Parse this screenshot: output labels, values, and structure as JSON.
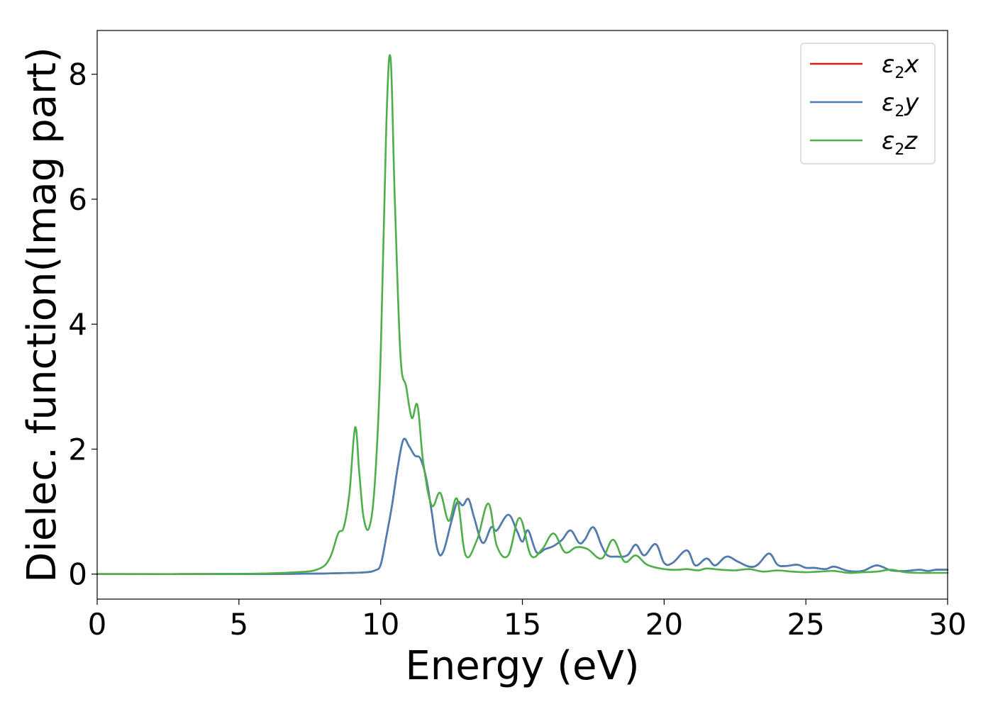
{
  "chart_data": {
    "type": "line",
    "title": "",
    "xlabel": "Energy (eV)",
    "ylabel": "Dielec. function(Imag part)",
    "xlim": [
      0,
      30
    ],
    "ylim": [
      -0.4,
      8.7
    ],
    "xticks": [
      0,
      5,
      10,
      15,
      20,
      25,
      30
    ],
    "yticks": [
      0,
      2,
      4,
      6,
      8
    ],
    "xtick_labels": [
      "0",
      "5",
      "10",
      "15",
      "20",
      "25",
      "30"
    ],
    "ytick_labels": [
      "0",
      "2",
      "4",
      "6",
      "8"
    ],
    "grid": false,
    "legend_position": "top-right",
    "series": [
      {
        "name": "ε2x",
        "legend_base": "ε",
        "legend_sub": "2",
        "legend_var": "x",
        "color": "#e41a1c",
        "x": [
          0,
          5,
          7,
          8,
          9,
          9.5,
          9.8,
          10,
          10.2,
          10.4,
          10.6,
          10.8,
          11.0,
          11.2,
          11.4,
          11.6,
          11.8,
          12.0,
          12.2,
          12.5,
          12.7,
          12.9,
          13.1,
          13.3,
          13.6,
          13.9,
          14.1,
          14.5,
          14.8,
          15.0,
          15.2,
          15.5,
          15.8,
          16.1,
          16.4,
          16.7,
          17.0,
          17.2,
          17.5,
          17.8,
          18.0,
          18.3,
          18.7,
          19.0,
          19.3,
          19.7,
          20.0,
          20.3,
          20.8,
          21.1,
          21.5,
          21.8,
          22.2,
          22.6,
          23.0,
          23.3,
          23.7,
          24.0,
          24.3,
          24.7,
          25.0,
          25.3,
          25.7,
          26.0,
          26.5,
          27.0,
          27.5,
          28.0,
          28.5,
          29.0,
          29.3,
          29.6,
          30.0
        ],
        "y": [
          0.0,
          0.0,
          0.005,
          0.01,
          0.02,
          0.03,
          0.06,
          0.15,
          0.6,
          1.1,
          1.7,
          2.15,
          2.05,
          1.9,
          1.85,
          1.55,
          1.0,
          0.4,
          0.35,
          0.85,
          1.15,
          1.1,
          1.2,
          0.9,
          0.5,
          0.75,
          0.7,
          0.95,
          0.7,
          0.52,
          0.7,
          0.35,
          0.4,
          0.45,
          0.55,
          0.7,
          0.5,
          0.55,
          0.75,
          0.45,
          0.3,
          0.28,
          0.3,
          0.47,
          0.3,
          0.48,
          0.18,
          0.18,
          0.38,
          0.14,
          0.25,
          0.14,
          0.28,
          0.2,
          0.12,
          0.15,
          0.33,
          0.15,
          0.13,
          0.15,
          0.1,
          0.1,
          0.08,
          0.12,
          0.05,
          0.05,
          0.14,
          0.06,
          0.05,
          0.07,
          0.05,
          0.07,
          0.07
        ]
      },
      {
        "name": "ε2y",
        "legend_base": "ε",
        "legend_sub": "2",
        "legend_var": "y",
        "color": "#4a7fb4",
        "x": [
          0,
          5,
          7,
          8,
          9,
          9.5,
          9.8,
          10,
          10.2,
          10.4,
          10.6,
          10.8,
          11.0,
          11.2,
          11.4,
          11.6,
          11.8,
          12.0,
          12.2,
          12.5,
          12.7,
          12.9,
          13.1,
          13.3,
          13.6,
          13.9,
          14.1,
          14.5,
          14.8,
          15.0,
          15.2,
          15.5,
          15.8,
          16.1,
          16.4,
          16.7,
          17.0,
          17.2,
          17.5,
          17.8,
          18.0,
          18.3,
          18.7,
          19.0,
          19.3,
          19.7,
          20.0,
          20.3,
          20.8,
          21.1,
          21.5,
          21.8,
          22.2,
          22.6,
          23.0,
          23.3,
          23.7,
          24.0,
          24.3,
          24.7,
          25.0,
          25.3,
          25.7,
          26.0,
          26.5,
          27.0,
          27.5,
          28.0,
          28.5,
          29.0,
          29.3,
          29.6,
          30.0
        ],
        "y": [
          0.0,
          0.0,
          0.005,
          0.01,
          0.02,
          0.03,
          0.06,
          0.15,
          0.6,
          1.1,
          1.7,
          2.15,
          2.05,
          1.9,
          1.85,
          1.55,
          1.0,
          0.4,
          0.35,
          0.85,
          1.15,
          1.1,
          1.2,
          0.9,
          0.5,
          0.75,
          0.7,
          0.95,
          0.7,
          0.52,
          0.7,
          0.35,
          0.4,
          0.45,
          0.55,
          0.7,
          0.5,
          0.55,
          0.75,
          0.45,
          0.3,
          0.28,
          0.3,
          0.47,
          0.3,
          0.48,
          0.18,
          0.18,
          0.38,
          0.14,
          0.25,
          0.14,
          0.28,
          0.2,
          0.12,
          0.15,
          0.33,
          0.15,
          0.13,
          0.15,
          0.1,
          0.1,
          0.08,
          0.12,
          0.05,
          0.05,
          0.14,
          0.06,
          0.05,
          0.07,
          0.05,
          0.07,
          0.07
        ]
      },
      {
        "name": "ε2z",
        "legend_base": "ε",
        "legend_sub": "2",
        "legend_var": "z",
        "color": "#4daf4a",
        "x": [
          0,
          5,
          7,
          7.8,
          8.2,
          8.5,
          8.7,
          8.9,
          9.1,
          9.25,
          9.4,
          9.6,
          9.8,
          10.0,
          10.2,
          10.35,
          10.5,
          10.7,
          10.9,
          11.1,
          11.3,
          11.5,
          11.8,
          12.1,
          12.4,
          12.7,
          13.0,
          13.4,
          13.8,
          14.1,
          14.5,
          14.9,
          15.3,
          15.7,
          16.1,
          16.5,
          16.9,
          17.3,
          17.8,
          18.2,
          18.6,
          19.0,
          19.4,
          20.0,
          20.5,
          20.8,
          21.2,
          21.5,
          22.0,
          22.5,
          23.0,
          23.5,
          24.0,
          24.5,
          25.0,
          25.5,
          26.0,
          26.5,
          27.0,
          27.5,
          28.0,
          28.5,
          29.0,
          29.5,
          30.0
        ],
        "y": [
          0.0,
          0.005,
          0.03,
          0.08,
          0.25,
          0.65,
          0.75,
          1.3,
          2.35,
          1.6,
          0.9,
          0.75,
          1.5,
          3.5,
          7.2,
          8.25,
          6.0,
          3.5,
          3.0,
          2.5,
          2.7,
          1.8,
          1.1,
          1.3,
          0.85,
          1.2,
          0.3,
          0.55,
          1.13,
          0.45,
          0.3,
          0.9,
          0.3,
          0.4,
          0.65,
          0.35,
          0.43,
          0.4,
          0.25,
          0.55,
          0.2,
          0.3,
          0.15,
          0.08,
          0.07,
          0.08,
          0.06,
          0.09,
          0.07,
          0.06,
          0.08,
          0.04,
          0.06,
          0.04,
          0.03,
          0.04,
          0.05,
          0.02,
          0.03,
          0.04,
          0.07,
          0.03,
          0.02,
          0.02,
          0.02
        ]
      }
    ]
  }
}
